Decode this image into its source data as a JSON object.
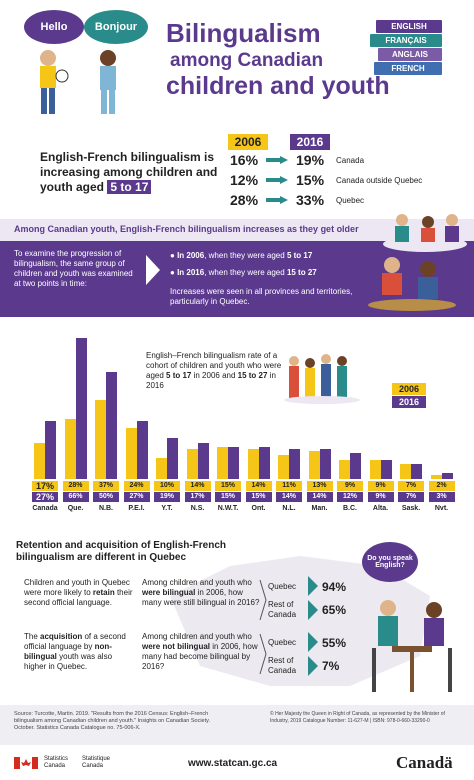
{
  "header": {
    "bubble_left": "Hello",
    "bubble_right": "Bonjour",
    "title_line1": "Bilingualism",
    "title_line2": "among Canadian",
    "title_line3": "children and youth",
    "books": [
      "ENGLISH",
      "FRANÇAIS",
      "ANGLAIS",
      "FRENCH"
    ]
  },
  "summary": {
    "text_line1": "English-French bilingualism is",
    "text_line2": "increasing among children and",
    "text_line3": "youth aged",
    "age_range": "5 to 17",
    "year_a": "2006",
    "year_b": "2016",
    "rows": [
      {
        "a": "16%",
        "b": "19%",
        "region": "Canada"
      },
      {
        "a": "12%",
        "b": "15%",
        "region": "Canada outside Quebec"
      },
      {
        "a": "28%",
        "b": "33%",
        "region": "Quebec"
      }
    ]
  },
  "band": {
    "title": "Among Canadian youth, English-French bilingualism increases as they get older",
    "left_text": "To examine the progression of bilingualism, the same group of children and youth was examined at two points in time:",
    "bullet1_year": "In 2006",
    "bullet1_rest": ", when they were aged",
    "bullet1_age": "5 to 17",
    "bullet2_year": "In 2016",
    "bullet2_rest": ", when they were aged",
    "bullet2_age": "15 to 27",
    "note": "Increases were seen in all provinces and territories, particularly in Quebec."
  },
  "chart_data": {
    "type": "bar",
    "title_parts": [
      "English–French bilingualism rate of a cohort of children and youth who were aged ",
      "5 to 17",
      " in 2006 and ",
      "15 to 27",
      " in 2016"
    ],
    "categories": [
      "Canada",
      "Que.",
      "N.B.",
      "P.E.I.",
      "Y.T.",
      "N.S.",
      "N.W.T.",
      "Ont.",
      "N.L.",
      "Man.",
      "B.C.",
      "Alta.",
      "Sask.",
      "Nvt."
    ],
    "series": [
      {
        "name": "2006",
        "color": "#f5c518",
        "values": [
          17,
          28,
          37,
          24,
          10,
          14,
          15,
          14,
          11,
          13,
          9,
          9,
          7,
          2
        ]
      },
      {
        "name": "2016",
        "color": "#5b3a8e",
        "values": [
          27,
          66,
          50,
          27,
          19,
          17,
          15,
          15,
          14,
          14,
          12,
          9,
          7,
          3
        ]
      }
    ],
    "labels_2006": [
      "17%",
      "28%",
      "37%",
      "24%",
      "10%",
      "14%",
      "15%",
      "14%",
      "11%",
      "13%",
      "9%",
      "9%",
      "7%",
      "2%"
    ],
    "labels_2016": [
      "27%",
      "66%",
      "50%",
      "27%",
      "19%",
      "17%",
      "15%",
      "15%",
      "14%",
      "14%",
      "12%",
      "9%",
      "7%",
      "3%"
    ],
    "ylim": [
      0,
      70
    ],
    "legend": [
      "2006",
      "2016"
    ],
    "legend_position": "right"
  },
  "retention": {
    "heading_line1": "Retention and acquisition of English-French",
    "heading_line2": "bilingualism are different in Quebec",
    "bubble": "Do you speak English?",
    "p1_a": "Children and youth in Quebec were more likely to ",
    "p1_b": "retain",
    "p1_c": " their second official language.",
    "p2_a": "The ",
    "p2_b": "acquisition",
    "p2_c": " of a second official language by ",
    "p2_d": "non-bilingual",
    "p2_e": " youth was also higher in Quebec.",
    "q1_a": "Among children and youth who ",
    "q1_b": "were bilingual",
    "q1_c": " in 2006, how many were still bilingual in 2016?",
    "q2_a": "Among children and youth who ",
    "q2_b": "were not bilingual",
    "q2_c": " in 2006, how many had become bilingual by 2016?",
    "results": [
      {
        "region": "Quebec",
        "value": "94%"
      },
      {
        "region": "Rest of Canada",
        "value": "65%"
      },
      {
        "region": "Quebec",
        "value": "55%"
      },
      {
        "region": "Rest of Canada",
        "value": "7%"
      }
    ]
  },
  "footer": {
    "source": "Source: Turcotte, Martin. 2019. \"Results from the 2016 Census: English–French bilingualism among Canadian children and youth.\" Insights on Canadian Society. October. Statistics Canada Catalogue no. 75-006-X.",
    "copyright": "© Her Majesty the Queen in Right of Canada, as represented by the Minister of Industry, 2019 Catalogue Number: 11-627-M | ISBN: 978-0-660-33290-0",
    "agency_en": "Statistics Canada",
    "agency_fr": "Statistique Canada",
    "website": "www.statcan.gc.ca",
    "wordmark": "Canadä"
  },
  "colors": {
    "purple": "#5b3a8e",
    "yellow": "#f5c518",
    "teal": "#2a8c8a",
    "lavender": "#ece7f2"
  }
}
